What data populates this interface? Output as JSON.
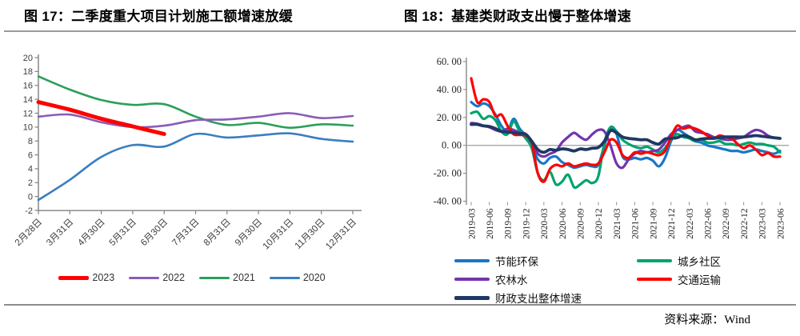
{
  "page": {
    "source_note": "资料来源：Wind"
  },
  "chart_data": [
    {
      "type": "line",
      "title": "图 17：二季度重大项目计划施工额增速放缓",
      "categories": [
        "2月28日",
        "3月31日",
        "4月30日",
        "5月31日",
        "6月30日",
        "7月31日",
        "8月31日",
        "9月30日",
        "10月31日",
        "11月30日",
        "12月31日"
      ],
      "ylim": [
        -2,
        20
      ],
      "ytick_step": 2,
      "ytick_labels": [
        "20",
        "18",
        "16",
        "14",
        "12",
        "10",
        "8",
        "6",
        "4",
        "2",
        "0",
        "-2"
      ],
      "grid": false,
      "legend_position": "bottom",
      "series": [
        {
          "name": "2023",
          "color": "#fe0000",
          "width": 5,
          "values": [
            13.6,
            12.5,
            11.2,
            10.1,
            9.0
          ]
        },
        {
          "name": "2022",
          "color": "#8a5cb8",
          "width": 2.6,
          "values": [
            11.5,
            11.8,
            10.7,
            10.0,
            10.2,
            11.0,
            11.1,
            11.5,
            12.0,
            11.3,
            11.6
          ]
        },
        {
          "name": "2021",
          "color": "#2ba05a",
          "width": 2.6,
          "values": [
            17.3,
            15.4,
            13.9,
            13.2,
            13.3,
            11.5,
            10.3,
            10.6,
            9.9,
            10.4,
            10.2
          ]
        },
        {
          "name": "2020",
          "color": "#3a7ebf",
          "width": 2.6,
          "values": [
            -0.5,
            2.4,
            5.7,
            7.4,
            7.2,
            9.0,
            8.5,
            8.8,
            9.1,
            8.3,
            7.9
          ]
        }
      ]
    },
    {
      "type": "line",
      "title": "图 18：基建类财政支出慢于整体增速",
      "x": [
        "2019-03",
        "2019-04",
        "2019-05",
        "2019-06",
        "2019-07",
        "2019-08",
        "2019-09",
        "2019-10",
        "2019-11",
        "2019-12",
        "2020-01",
        "2020-02",
        "2020-03",
        "2020-04",
        "2020-05",
        "2020-06",
        "2020-07",
        "2020-08",
        "2020-09",
        "2020-10",
        "2020-11",
        "2020-12",
        "2021-01",
        "2021-02",
        "2021-03",
        "2021-04",
        "2021-05",
        "2021-06",
        "2021-07",
        "2021-08",
        "2021-09",
        "2021-10",
        "2021-11",
        "2021-12",
        "2022-01",
        "2022-02",
        "2022-03",
        "2022-04",
        "2022-05",
        "2022-06",
        "2022-07",
        "2022-08",
        "2022-09",
        "2022-10",
        "2022-11",
        "2022-12",
        "2023-01",
        "2023-02",
        "2023-03",
        "2023-04",
        "2023-05",
        "2023-06"
      ],
      "xtick_every": 3,
      "xtick_labels": [
        "2019-03",
        "2019-06",
        "2019-09",
        "2019-12",
        "2020-03",
        "2020-06",
        "2020-09",
        "2020-12",
        "2021-03",
        "2021-06",
        "2021-09",
        "2021-12",
        "2022-03",
        "2022-06",
        "2022-09",
        "2022-12",
        "2023-03",
        "2023-06"
      ],
      "ylim": [
        -40,
        60
      ],
      "ytick_values": [
        60,
        40,
        20,
        0,
        -20,
        -40
      ],
      "ytick_labels": [
        "60. 00",
        "40. 00",
        "20. 00",
        "0. 00",
        "-20. 00",
        "-40. 00"
      ],
      "zero_line": true,
      "grid": false,
      "legend_position": "bottom",
      "series": [
        {
          "name": "节能环保",
          "color": "#1877c8",
          "width": 3.2,
          "values": [
            31,
            28,
            30,
            28,
            22,
            14,
            10,
            19,
            12,
            7,
            0,
            -10,
            -13,
            -9,
            -8,
            -12,
            -14,
            -16,
            -15,
            -14,
            -15,
            -14,
            0,
            11,
            8,
            -8,
            -10,
            -9,
            -10,
            -9,
            -11,
            -15,
            -9,
            3,
            11,
            9,
            6,
            3,
            2,
            0,
            -1,
            -2,
            -3,
            -4,
            -4,
            -5,
            -4,
            -3,
            -4,
            -5,
            -6,
            -4
          ]
        },
        {
          "name": "城乡社区",
          "color": "#00a36d",
          "width": 3.2,
          "values": [
            23,
            24,
            19,
            21,
            18,
            10,
            8,
            17,
            10,
            5,
            -2,
            -20,
            -25,
            -19,
            -28,
            -26,
            -21,
            -30,
            -28,
            -25,
            -27,
            -22,
            2,
            13,
            10,
            4,
            1,
            -1,
            -2,
            -1,
            -3,
            -5,
            -2,
            4,
            8,
            6,
            5,
            3,
            4,
            2,
            2,
            3,
            1,
            1,
            0,
            1,
            2,
            1,
            1,
            0,
            -1,
            -5
          ]
        },
        {
          "name": "农林水",
          "color": "#7434ae",
          "width": 3.2,
          "values": [
            16,
            15.5,
            14,
            13,
            11,
            10,
            12,
            11,
            9,
            8,
            2,
            -6,
            -8,
            -6,
            -4,
            2,
            6,
            9,
            6,
            4,
            8,
            11,
            10,
            0,
            -13,
            -16,
            -10,
            -6,
            -4,
            -5,
            -4,
            -3,
            2,
            8,
            11,
            13,
            14,
            10,
            9,
            8,
            6,
            5,
            4,
            4,
            5,
            6,
            9,
            11,
            10,
            7,
            5.5,
            5
          ]
        },
        {
          "name": "交通运输",
          "color": "#fe0000",
          "width": 3.2,
          "values": [
            48,
            31,
            33,
            31,
            21,
            22,
            14,
            8,
            7.5,
            7,
            2,
            -20,
            -26,
            -17,
            -14,
            -15,
            -13,
            -15,
            -14,
            -13,
            -14,
            -13,
            -5,
            4,
            2,
            -7,
            -9,
            -5,
            -6,
            -5,
            -6,
            -7,
            -4,
            6,
            14,
            12,
            13,
            12,
            10,
            7,
            5,
            7,
            6,
            5,
            1,
            -2,
            0,
            -3,
            -7,
            -5.5,
            -8,
            -8
          ]
        },
        {
          "name": "财政支出整体增速",
          "color": "#1f3864",
          "width": 3.8,
          "values": [
            15,
            15,
            14,
            13.5,
            12,
            10,
            9.5,
            9,
            8.5,
            8,
            3,
            -3,
            -5,
            -3,
            -3.5,
            -2.5,
            -3,
            -4,
            -2.5,
            -3,
            -2,
            -1.5,
            3,
            10.5,
            9,
            6,
            5,
            4.5,
            4,
            4,
            2,
            1,
            4.5,
            5,
            5.5,
            7,
            6,
            4,
            4.5,
            5,
            5,
            5.5,
            6,
            6,
            6,
            6,
            6.5,
            7,
            6.5,
            6,
            5.5,
            5
          ]
        }
      ]
    }
  ]
}
